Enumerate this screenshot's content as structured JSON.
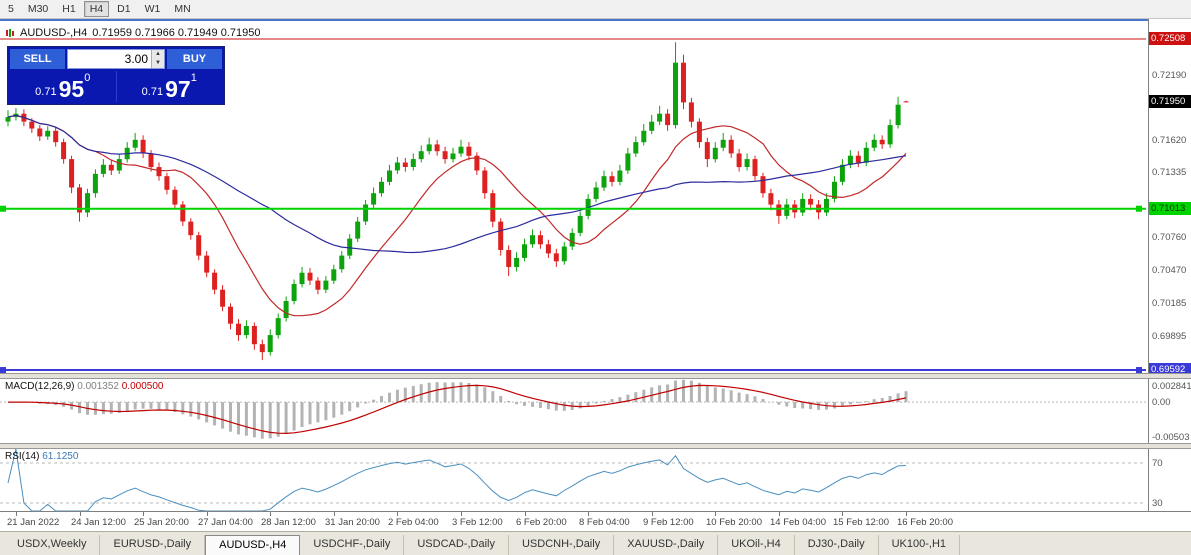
{
  "toolbar": {
    "timeframes": [
      "5",
      "M30",
      "H1",
      "H4",
      "D1",
      "W1",
      "MN"
    ],
    "active_timeframe": "H4"
  },
  "chart": {
    "title_symbol": "AUDUSD-,H4",
    "title_ohlc": "0.71959 0.71966 0.71949 0.71950"
  },
  "trade_widget": {
    "sell_label": "SELL",
    "buy_label": "BUY",
    "volume": "3.00",
    "sell_price": {
      "prefix": "0.71",
      "big": "95",
      "sup": "0"
    },
    "buy_price": {
      "prefix": "0.71",
      "big": "97",
      "sup": "1"
    }
  },
  "price_axis": {
    "gray_labels": [
      "0.72190",
      "0.71620",
      "0.71335",
      "0.70760",
      "0.70470",
      "0.70185",
      "0.69895"
    ],
    "boxes": [
      {
        "value": "0.72508",
        "bg": "#cc1111",
        "fg": "#ffffff"
      },
      {
        "value": "0.71950",
        "bg": "#000000",
        "fg": "#ffffff"
      },
      {
        "value": "0.71013",
        "bg": "#00d400",
        "fg": "#013301"
      },
      {
        "value": "0.69592",
        "bg": "#3a3ad9",
        "fg": "#ffffff"
      }
    ]
  },
  "hlines": [
    {
      "price": 0.72508,
      "color": "#cc1111",
      "width": 1,
      "handles": false
    },
    {
      "price": 0.71013,
      "color": "#00d400",
      "width": 2,
      "handles": true
    },
    {
      "price": 0.69592,
      "color": "#3a3ad9",
      "width": 2,
      "handles": true
    }
  ],
  "macd": {
    "name": "MACD(12,26,9)",
    "value_main": "0.001352",
    "value_signal": "0.000500",
    "axis_max": "0.002841",
    "axis_zero": "0.00",
    "axis_min": "-0.00503",
    "scale_max": 0.002841,
    "scale_min": -0.00503,
    "hist_color": "#b3b3b3",
    "signal_color": "#c00000"
  },
  "rsi": {
    "name": "RSI(14)",
    "value": "61.1250",
    "levels": [
      70,
      30
    ],
    "level_labels": [
      "70",
      "30"
    ],
    "scale": [
      22,
      84
    ],
    "color": "#4a8fc0"
  },
  "time_axis": [
    "21 Jan 2022",
    "24 Jan 12:00",
    "25 Jan 20:00",
    "27 Jan 04:00",
    "28 Jan 12:00",
    "31 Jan 20:00",
    "2 Feb 04:00",
    "3 Feb 12:00",
    "6 Feb 20:00",
    "8 Feb 04:00",
    "9 Feb 12:00",
    "10 Feb 20:00",
    "14 Feb 04:00",
    "15 Feb 12:00",
    "16 Feb 20:00"
  ],
  "tabs": {
    "items": [
      "USDX,Weekly",
      "EURUSD-,Daily",
      "AUDUSD-,H4",
      "USDCHF-,Daily",
      "USDCAD-,Daily",
      "USDCNH-,Daily",
      "XAUUSD-,Daily",
      "UKOil-,H4",
      "DJ30-,Daily",
      "UK100-,H1"
    ],
    "active_index": 2
  },
  "chart_data": {
    "type": "candlestick",
    "symbol": "AUDUSD-",
    "timeframe": "H4",
    "ylim": [
      0.69566,
      0.72667
    ],
    "colors": {
      "up": "#0ca30c",
      "down": "#dd2020",
      "ma_fast": "#c22929",
      "ma_slow": "#2c2c9e"
    },
    "ma_periods": [
      12,
      34
    ],
    "candles": [
      [
        0.7178,
        0.7188,
        0.7174,
        0.7182
      ],
      [
        0.7182,
        0.719,
        0.7179,
        0.7185
      ],
      [
        0.7185,
        0.7189,
        0.7174,
        0.7178
      ],
      [
        0.7178,
        0.7181,
        0.7168,
        0.7172
      ],
      [
        0.7172,
        0.7175,
        0.7161,
        0.7165
      ],
      [
        0.7165,
        0.7174,
        0.7162,
        0.717
      ],
      [
        0.717,
        0.7173,
        0.7156,
        0.716
      ],
      [
        0.716,
        0.7163,
        0.7141,
        0.7145
      ],
      [
        0.7145,
        0.7148,
        0.7115,
        0.712
      ],
      [
        0.712,
        0.7123,
        0.709,
        0.7098
      ],
      [
        0.7098,
        0.7119,
        0.7094,
        0.7115
      ],
      [
        0.7115,
        0.7136,
        0.7111,
        0.7132
      ],
      [
        0.7132,
        0.7145,
        0.7129,
        0.714
      ],
      [
        0.714,
        0.7144,
        0.7131,
        0.7135
      ],
      [
        0.7135,
        0.7149,
        0.7132,
        0.7145
      ],
      [
        0.7145,
        0.716,
        0.7142,
        0.7155
      ],
      [
        0.7155,
        0.7168,
        0.7152,
        0.7162
      ],
      [
        0.7162,
        0.7166,
        0.7146,
        0.715
      ],
      [
        0.715,
        0.7153,
        0.7134,
        0.7138
      ],
      [
        0.7138,
        0.7142,
        0.7126,
        0.713
      ],
      [
        0.713,
        0.7133,
        0.7114,
        0.7118
      ],
      [
        0.7118,
        0.7121,
        0.7101,
        0.7105
      ],
      [
        0.7105,
        0.7108,
        0.7086,
        0.709
      ],
      [
        0.709,
        0.7093,
        0.7074,
        0.7078
      ],
      [
        0.7078,
        0.7081,
        0.7056,
        0.706
      ],
      [
        0.706,
        0.7064,
        0.7041,
        0.7045
      ],
      [
        0.7045,
        0.7048,
        0.7026,
        0.703
      ],
      [
        0.703,
        0.7034,
        0.7011,
        0.7015
      ],
      [
        0.7015,
        0.7018,
        0.6995,
        0.7
      ],
      [
        0.7,
        0.7004,
        0.6985,
        0.699
      ],
      [
        0.699,
        0.7003,
        0.6987,
        0.6998
      ],
      [
        0.6998,
        0.7001,
        0.6977,
        0.6982
      ],
      [
        0.6982,
        0.6986,
        0.6968,
        0.6975
      ],
      [
        0.6975,
        0.6995,
        0.6972,
        0.699
      ],
      [
        0.699,
        0.7009,
        0.6987,
        0.7005
      ],
      [
        0.7005,
        0.7024,
        0.7002,
        0.702
      ],
      [
        0.702,
        0.7039,
        0.7017,
        0.7035
      ],
      [
        0.7035,
        0.705,
        0.7032,
        0.7045
      ],
      [
        0.7045,
        0.7049,
        0.7034,
        0.7038
      ],
      [
        0.7038,
        0.7041,
        0.7026,
        0.703
      ],
      [
        0.703,
        0.7042,
        0.7027,
        0.7038
      ],
      [
        0.7038,
        0.7052,
        0.7035,
        0.7048
      ],
      [
        0.7048,
        0.7064,
        0.7045,
        0.706
      ],
      [
        0.706,
        0.7079,
        0.7057,
        0.7075
      ],
      [
        0.7075,
        0.7094,
        0.7072,
        0.709
      ],
      [
        0.709,
        0.7109,
        0.7087,
        0.7105
      ],
      [
        0.7105,
        0.712,
        0.7102,
        0.7115
      ],
      [
        0.7115,
        0.7129,
        0.7112,
        0.7125
      ],
      [
        0.7125,
        0.714,
        0.7122,
        0.7135
      ],
      [
        0.7135,
        0.7147,
        0.7132,
        0.7142
      ],
      [
        0.7142,
        0.7146,
        0.7134,
        0.7138
      ],
      [
        0.7138,
        0.715,
        0.7135,
        0.7145
      ],
      [
        0.7145,
        0.7157,
        0.7142,
        0.7152
      ],
      [
        0.7152,
        0.7164,
        0.7149,
        0.7158
      ],
      [
        0.7158,
        0.7162,
        0.7148,
        0.7152
      ],
      [
        0.7152,
        0.7156,
        0.7141,
        0.7145
      ],
      [
        0.7145,
        0.7155,
        0.7142,
        0.715
      ],
      [
        0.715,
        0.7162,
        0.7147,
        0.7156
      ],
      [
        0.7156,
        0.716,
        0.7144,
        0.7148
      ],
      [
        0.7148,
        0.7151,
        0.7131,
        0.7135
      ],
      [
        0.7135,
        0.7138,
        0.711,
        0.7115
      ],
      [
        0.7115,
        0.7118,
        0.7085,
        0.709
      ],
      [
        0.709,
        0.7093,
        0.706,
        0.7065
      ],
      [
        0.7065,
        0.7069,
        0.7042,
        0.705
      ],
      [
        0.705,
        0.7063,
        0.7046,
        0.7058
      ],
      [
        0.7058,
        0.7075,
        0.7055,
        0.707
      ],
      [
        0.707,
        0.7083,
        0.7067,
        0.7078
      ],
      [
        0.7078,
        0.7082,
        0.7066,
        0.707
      ],
      [
        0.707,
        0.7074,
        0.7058,
        0.7062
      ],
      [
        0.7062,
        0.7066,
        0.705,
        0.7055
      ],
      [
        0.7055,
        0.7072,
        0.7052,
        0.7068
      ],
      [
        0.7068,
        0.7084,
        0.7065,
        0.708
      ],
      [
        0.708,
        0.7099,
        0.7077,
        0.7095
      ],
      [
        0.7095,
        0.7114,
        0.7092,
        0.711
      ],
      [
        0.711,
        0.7125,
        0.7107,
        0.712
      ],
      [
        0.712,
        0.7135,
        0.7117,
        0.713
      ],
      [
        0.713,
        0.7134,
        0.7121,
        0.7125
      ],
      [
        0.7125,
        0.714,
        0.7122,
        0.7135
      ],
      [
        0.7135,
        0.7155,
        0.7132,
        0.715
      ],
      [
        0.715,
        0.7165,
        0.7147,
        0.716
      ],
      [
        0.716,
        0.7176,
        0.7157,
        0.717
      ],
      [
        0.717,
        0.7184,
        0.7167,
        0.7178
      ],
      [
        0.7178,
        0.7192,
        0.7175,
        0.7185
      ],
      [
        0.7185,
        0.7189,
        0.717,
        0.7175
      ],
      [
        0.7175,
        0.7248,
        0.7172,
        0.723
      ],
      [
        0.723,
        0.7237,
        0.7189,
        0.7195
      ],
      [
        0.7195,
        0.7199,
        0.7173,
        0.7178
      ],
      [
        0.7178,
        0.7181,
        0.7155,
        0.716
      ],
      [
        0.716,
        0.7164,
        0.7138,
        0.7145
      ],
      [
        0.7145,
        0.716,
        0.7142,
        0.7155
      ],
      [
        0.7155,
        0.7168,
        0.7152,
        0.7162
      ],
      [
        0.7162,
        0.7166,
        0.7146,
        0.715
      ],
      [
        0.715,
        0.7154,
        0.7134,
        0.7138
      ],
      [
        0.7138,
        0.715,
        0.7135,
        0.7145
      ],
      [
        0.7145,
        0.7148,
        0.7126,
        0.713
      ],
      [
        0.713,
        0.7133,
        0.7111,
        0.7115
      ],
      [
        0.7115,
        0.7119,
        0.71,
        0.7105
      ],
      [
        0.7105,
        0.7109,
        0.7088,
        0.7095
      ],
      [
        0.7095,
        0.711,
        0.7092,
        0.7105
      ],
      [
        0.7105,
        0.7109,
        0.7093,
        0.7098
      ],
      [
        0.7098,
        0.7115,
        0.7095,
        0.711
      ],
      [
        0.711,
        0.7114,
        0.71,
        0.7105
      ],
      [
        0.7105,
        0.7109,
        0.7092,
        0.7098
      ],
      [
        0.7098,
        0.7115,
        0.7095,
        0.711
      ],
      [
        0.711,
        0.713,
        0.7107,
        0.7125
      ],
      [
        0.7125,
        0.7145,
        0.7122,
        0.714
      ],
      [
        0.714,
        0.7153,
        0.7137,
        0.7148
      ],
      [
        0.7148,
        0.7152,
        0.7138,
        0.7142
      ],
      [
        0.7142,
        0.716,
        0.7139,
        0.7155
      ],
      [
        0.7155,
        0.7167,
        0.7152,
        0.7162
      ],
      [
        0.7162,
        0.7166,
        0.7154,
        0.7158
      ],
      [
        0.7158,
        0.718,
        0.7155,
        0.7175
      ],
      [
        0.7175,
        0.72,
        0.7172,
        0.7193
      ],
      [
        0.71959,
        0.71966,
        0.71949,
        0.7195
      ]
    ]
  }
}
